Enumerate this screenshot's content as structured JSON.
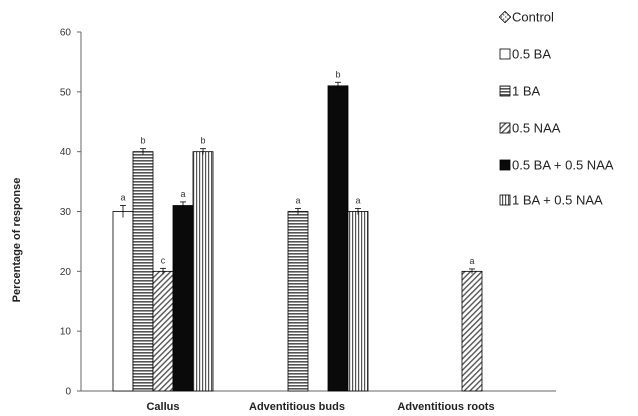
{
  "chart_data": {
    "type": "bar",
    "ylabel": "Percentage of response",
    "ylim": [
      0,
      60
    ],
    "yticks": [
      0,
      10,
      20,
      30,
      40,
      50,
      60
    ],
    "categories": [
      "Callus",
      "Adventitious buds",
      "Adventitious roots"
    ],
    "grid": false,
    "legend_position": "right",
    "series": [
      {
        "name": "Control",
        "pattern": "dots",
        "values": [
          null,
          null,
          null
        ],
        "errors": [
          null,
          null,
          null
        ],
        "letters": [
          null,
          null,
          null
        ]
      },
      {
        "name": "0.5 BA",
        "pattern": "white",
        "values": [
          30,
          null,
          null
        ],
        "errors": [
          1,
          null,
          null
        ],
        "letters": [
          "a",
          null,
          null
        ]
      },
      {
        "name": "1 BA",
        "pattern": "hstripe",
        "values": [
          40,
          30,
          null
        ],
        "errors": [
          0.5,
          0.5,
          null
        ],
        "letters": [
          "b",
          "a",
          null
        ]
      },
      {
        "name": "0.5 NAA",
        "pattern": "diagonal",
        "values": [
          20,
          null,
          20
        ],
        "errors": [
          0.5,
          null,
          0.4
        ],
        "letters": [
          "c",
          null,
          "a"
        ]
      },
      {
        "name": "0.5 BA + 0.5 NAA",
        "pattern": "solid",
        "values": [
          31,
          51,
          null
        ],
        "errors": [
          0.6,
          0.6,
          null
        ],
        "letters": [
          "a",
          "b",
          null
        ]
      },
      {
        "name": "1 BA + 0.5 NAA",
        "pattern": "vstripe",
        "values": [
          40,
          30,
          null
        ],
        "errors": [
          0.5,
          0.5,
          null
        ],
        "letters": [
          "b",
          "a",
          null
        ]
      }
    ],
    "colors": {
      "stroke": "#000000",
      "solid": "#0a0a0a",
      "hatch": "#555555",
      "axis": "#666666"
    }
  }
}
